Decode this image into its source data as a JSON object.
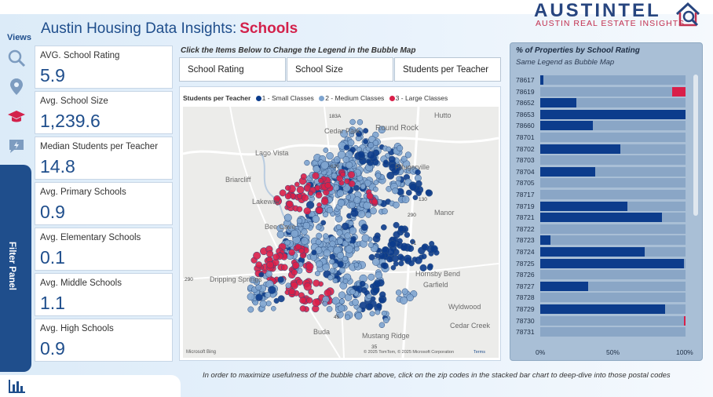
{
  "header": {
    "title": "Austin Housing Data Insights:",
    "title_accent": "Schools",
    "logo_word": "AUSTINTEL",
    "logo_sub": "AUSTIN REAL ESTATE INSIGHTS"
  },
  "rail": {
    "views_label": "Views",
    "icons": [
      "search-icon",
      "location-pin-icon",
      "graduation-cap-icon",
      "lightning-chat-icon"
    ],
    "filter_panel_label": "Filter Panel",
    "bottom_icon": "bar-chart-icon"
  },
  "kpis": [
    {
      "label": "AVG. School Rating",
      "value": "5.9"
    },
    {
      "label": "Avg. School Size",
      "value": "1,239.6"
    },
    {
      "label": "Median Students per Teacher",
      "value": "14.8"
    },
    {
      "label": "Avg. Primary Schools",
      "value": "0.9"
    },
    {
      "label": "Avg. Elementary Schools",
      "value": "0.1"
    },
    {
      "label": "Avg. Middle Schools",
      "value": "1.1"
    },
    {
      "label": "Avg. High Schools",
      "value": "0.9"
    }
  ],
  "legend_buttons": {
    "instruction": "Click the Items Below to Change the Legend in the Bubble Map",
    "items": [
      "School Rating",
      "School Size",
      "Students per Teacher"
    ]
  },
  "bubble_map": {
    "legend_title": "Students per Teacher",
    "legend_items": [
      {
        "label": "1 - Small Classes",
        "color": "#0c3c8c"
      },
      {
        "label": "2 - Medium Classes",
        "color": "#7ea4cf"
      },
      {
        "label": "3 - Large Classes",
        "color": "#d91f49"
      }
    ],
    "place_labels": [
      "Cedar Park",
      "Round Rock",
      "Hutto",
      "Lago Vista",
      "Pflugerville",
      "Briarcliff",
      "Lakeway",
      "Manor",
      "Bee Cave",
      "Dripping Springs",
      "Hornsby Bend",
      "Garfield",
      "Wyldwood",
      "Buda",
      "Mustang Ridge",
      "Cedar Creek"
    ],
    "road_labels": [
      "183A",
      "620",
      "290",
      "290",
      "71",
      "130",
      "45",
      "35"
    ],
    "attribution": "© 2025 TomTom, © 2025 Microsoft Corporation",
    "terms": "Terms",
    "provider": "Microsoft Bing"
  },
  "bar_chart": {
    "title": "% of Properties by School Rating",
    "subtitle": "Same Legend as Bubble Map",
    "x_ticks": [
      "0%",
      "50%",
      "100%"
    ]
  },
  "chart_data": {
    "type": "bar",
    "orientation": "horizontal",
    "stacked": true,
    "title": "% of Properties by School Rating",
    "categories": [
      "78617",
      "78619",
      "78652",
      "78653",
      "78660",
      "78701",
      "78702",
      "78703",
      "78704",
      "78705",
      "78717",
      "78719",
      "78721",
      "78722",
      "78723",
      "78724",
      "78725",
      "78726",
      "78727",
      "78728",
      "78729",
      "78730",
      "78731"
    ],
    "series": [
      {
        "name": "1",
        "color": "#0c3c8c",
        "values": [
          2,
          0,
          25,
          100,
          36,
          0,
          55,
          0,
          38,
          0,
          0,
          60,
          84,
          0,
          7,
          72,
          99,
          0,
          33,
          0,
          86,
          0,
          0
        ]
      },
      {
        "name": "2",
        "color": "#8aa6c6",
        "values": [
          98,
          91,
          75,
          0,
          64,
          100,
          45,
          100,
          62,
          100,
          100,
          40,
          16,
          100,
          93,
          28,
          1,
          100,
          67,
          100,
          14,
          99,
          100
        ]
      },
      {
        "name": "3",
        "color": "#d91f49",
        "values": [
          0,
          9,
          0,
          0,
          0,
          0,
          0,
          0,
          0,
          0,
          0,
          0,
          0,
          0,
          0,
          0,
          0,
          0,
          0,
          0,
          0,
          1,
          0
        ]
      }
    ],
    "xlim": [
      0,
      100
    ]
  },
  "footer": {
    "note": "In order to maximize usefulness of the bubble chart above, click on the zip codes in the stacked bar chart to deep-dive into those postal codes"
  }
}
